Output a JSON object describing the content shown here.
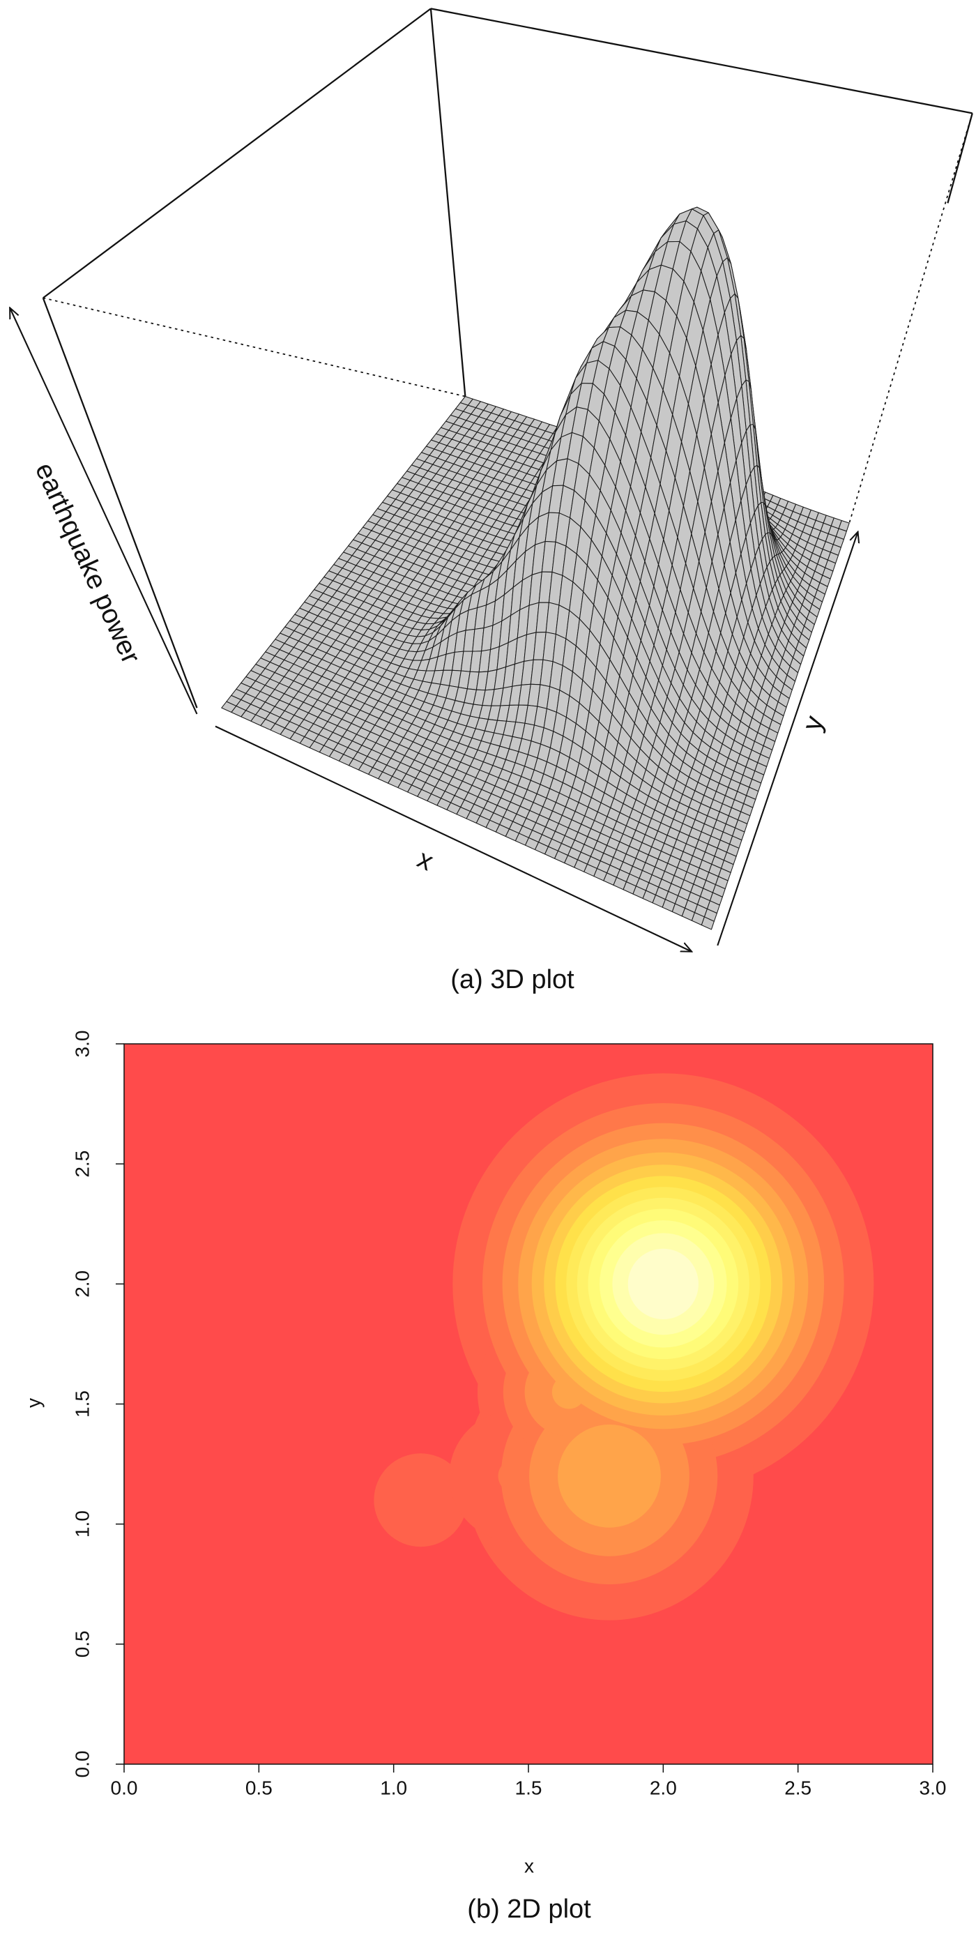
{
  "chart_data": [
    {
      "type": "surface",
      "xlabel": "x",
      "ylabel": "y",
      "zlabel": "earthquake power",
      "caption": "(a) 3D plot",
      "xlim": [
        0,
        3
      ],
      "ylim": [
        0,
        3
      ],
      "zlim": [
        0,
        1.05
      ],
      "peaks": {
        "x": [
          2.0,
          1.8,
          1.1,
          1.65,
          1.45
        ],
        "y": [
          2.0,
          1.2,
          1.1,
          1.55,
          1.2
        ],
        "values": [
          1.0,
          0.35,
          0.12,
          0.3,
          0.15
        ],
        "spread": [
          0.34,
          0.3,
          0.17,
          0.2,
          0.2
        ]
      },
      "color": "#c8c8c8"
    },
    {
      "type": "heatmap",
      "xlabel": "x",
      "ylabel": "y",
      "caption": "(b) 2D plot",
      "xlim": [
        0,
        3
      ],
      "ylim": [
        0,
        3
      ],
      "xticks": [
        {
          "value": 0,
          "label": "0.0"
        },
        0.5,
        {
          "value": 1,
          "label": "1.0"
        },
        1.5,
        {
          "value": 2,
          "label": "2.0"
        },
        2.5,
        {
          "value": 3,
          "label": "3.0"
        }
      ],
      "yticks": [
        {
          "value": 0,
          "label": "0.0"
        },
        0.5,
        {
          "value": 1,
          "label": "1.0"
        },
        1.5,
        {
          "value": 2,
          "label": "2.0"
        },
        2.5,
        {
          "value": 3,
          "label": "3.0"
        }
      ],
      "peaks": {
        "x": [
          2.0,
          1.8,
          1.1,
          1.65,
          1.45
        ],
        "y": [
          2.0,
          1.2,
          1.1,
          1.55,
          1.2
        ],
        "values": [
          1.0,
          0.35,
          0.12,
          0.3,
          0.15
        ],
        "spread": [
          0.34,
          0.3,
          0.17,
          0.2,
          0.2
        ]
      },
      "levels": 14,
      "colors": [
        "#ff4b4b",
        "#ff9a4a",
        "#ffe14a",
        "#ffff80",
        "#fffce8"
      ]
    }
  ]
}
